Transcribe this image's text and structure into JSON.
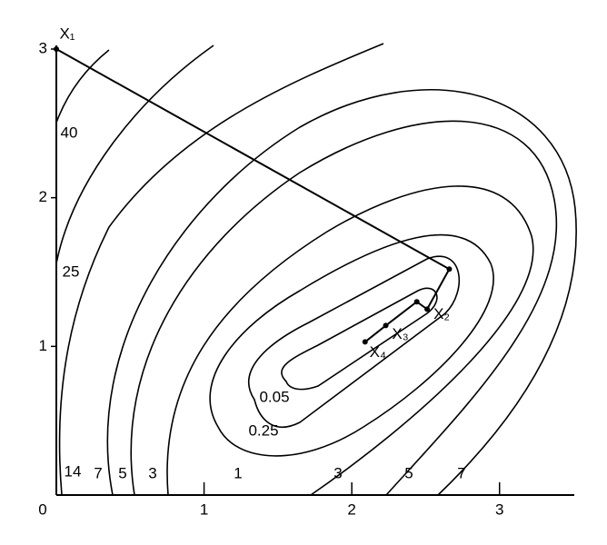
{
  "chart_data": {
    "type": "contour",
    "xlim": [
      0,
      3.5
    ],
    "ylim": [
      0,
      3
    ],
    "xticks": [
      0,
      1,
      2,
      3
    ],
    "yticks": [
      1,
      2,
      3
    ],
    "contour_labels": [
      40,
      25,
      14,
      7,
      5,
      3,
      1,
      3,
      5,
      7,
      0.05,
      0.25
    ],
    "path": {
      "x": [
        0,
        2.66,
        2.51,
        2.44,
        2.23,
        2.09
      ],
      "y": [
        3,
        1.52,
        1.25,
        1.3,
        1.14,
        1.03
      ],
      "labels": [
        "X₁",
        null,
        "X₂",
        null,
        "X₃",
        "X₄"
      ]
    }
  }
}
